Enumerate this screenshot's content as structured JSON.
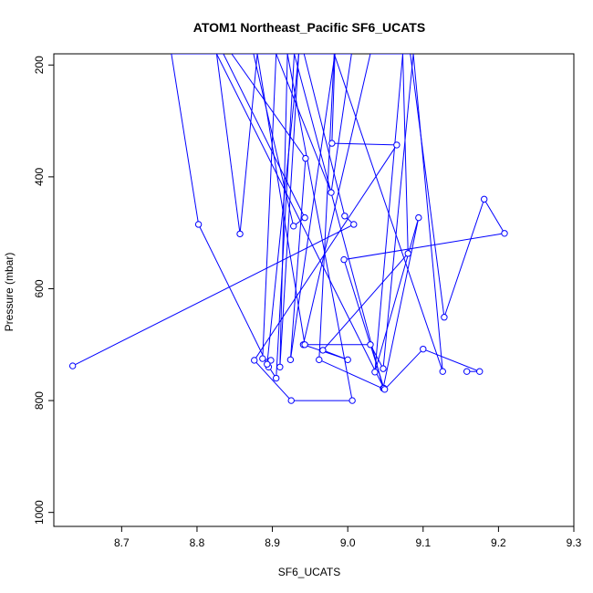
{
  "chart_data": {
    "type": "line",
    "title": "ATOM1 Northeast_Pacific SF6_UCATS",
    "xlabel": "SF6_UCATS",
    "ylabel": "Pressure (mbar)",
    "xlim": [
      8.61,
      9.3
    ],
    "ylim": [
      1025,
      180
    ],
    "y_reversed": true,
    "grid": false,
    "legend": "none",
    "x_ticks": [
      8.7,
      8.8,
      8.9,
      9.0,
      9.1,
      9.2,
      9.3
    ],
    "x_tick_labels": [
      "8.7",
      "8.8",
      "8.9",
      "9.0",
      "9.1",
      "9.2",
      "9.3"
    ],
    "y_ticks": [
      200,
      400,
      600,
      800,
      1000
    ],
    "y_tick_labels": [
      "200",
      "400",
      "600",
      "800",
      "1000"
    ],
    "series": [
      {
        "color": "#0000ff",
        "marker": "open-circle",
        "points": [
          [
            8.635,
            738
          ],
          [
            9.008,
            485
          ],
          [
            8.996,
            470
          ],
          [
            8.942,
            180
          ],
          [
            8.913,
            180
          ],
          [
            8.875,
            180
          ],
          [
            8.928,
            488
          ],
          [
            8.943,
            473
          ],
          [
            8.835,
            180
          ],
          [
            8.766,
            180
          ],
          [
            8.802,
            485
          ],
          [
            8.895,
            740
          ],
          [
            8.898,
            728
          ],
          [
            8.887,
            725
          ],
          [
            8.905,
            180
          ],
          [
            8.978,
            428
          ],
          [
            9.005,
            180
          ],
          [
            8.95,
            180
          ],
          [
            8.846,
            180
          ],
          [
            8.944,
            367
          ],
          [
            8.924,
            727
          ],
          [
            8.983,
            180
          ],
          [
            8.979,
            340
          ],
          [
            9.065,
            343
          ],
          [
            8.876,
            728
          ],
          [
            8.925,
            800
          ],
          [
            9.006,
            800
          ],
          [
            8.92,
            180
          ],
          [
            8.91,
            740
          ],
          [
            8.935,
            180
          ],
          [
            8.893,
            735
          ],
          [
            8.905,
            760
          ],
          [
            8.929,
            180
          ],
          [
            9.047,
            778
          ],
          [
            9.094,
            473
          ],
          [
            9.036,
            749
          ],
          [
            9.073,
            180
          ],
          [
            9.08,
            537
          ],
          [
            8.967,
            710
          ],
          [
            9.0,
            727
          ],
          [
            8.941,
            700
          ],
          [
            9.03,
            180
          ],
          [
            9.083,
            180
          ],
          [
            9.128,
            651
          ],
          [
            9.181,
            440
          ],
          [
            9.208,
            501
          ],
          [
            8.995,
            548
          ],
          [
            9.048,
            778
          ],
          [
            8.826,
            180
          ],
          [
            8.857,
            502
          ],
          [
            8.88,
            180
          ],
          [
            8.943,
            700
          ],
          [
            9.03,
            700
          ],
          [
            9.047,
            743
          ],
          [
            9.087,
            180
          ],
          [
            9.126,
            748
          ],
          [
            8.982,
            180
          ],
          [
            8.962,
            727
          ],
          [
            9.049,
            780
          ],
          [
            9.1,
            708
          ],
          [
            9.175,
            748
          ],
          [
            9.158,
            748
          ]
        ]
      }
    ]
  }
}
